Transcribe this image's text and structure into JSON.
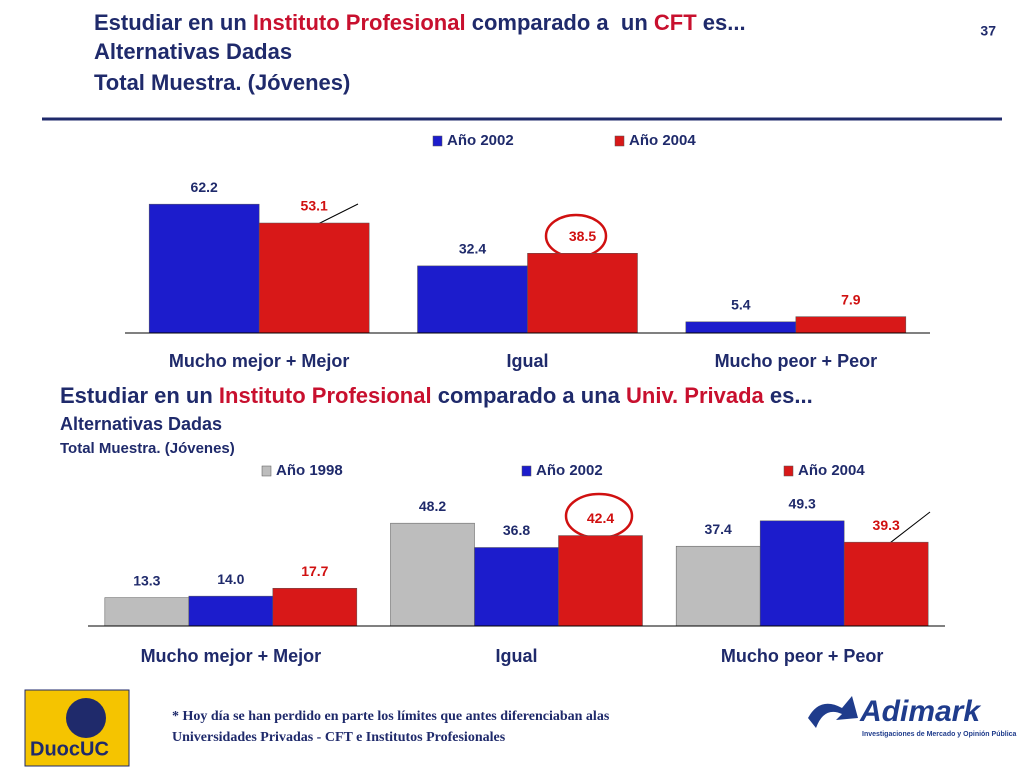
{
  "page_number": "37",
  "footnote": [
    "* Hoy día se han perdido en parte los límites que antes diferenciaban alas",
    "Universidades Privadas - CFT e Institutos Profesionales"
  ],
  "logos": [
    "DuocUC",
    "Adimark",
    "Investigaciones de Mercado y Opinión Pública"
  ],
  "chart_data": [
    {
      "type": "bar",
      "title": [
        "Estudiar en un ",
        "Instituto Profesional",
        " comparado a  un ",
        "CFT",
        " es..."
      ],
      "subtitle": [
        "Alternativas Dadas",
        "Total Muestra. (Jóvenes)"
      ],
      "categories": [
        "Mucho mejor + Mejor",
        "Igual",
        "Mucho peor + Peor"
      ],
      "series": [
        {
          "name": "Año 2002",
          "color": "#1c1ccc",
          "label_color": "#1f2a6b",
          "values": [
            62.2,
            32.4,
            5.4
          ]
        },
        {
          "name": "Año 2004",
          "color": "#d81818",
          "label_color": "#d01010",
          "values": [
            53.1,
            38.5,
            7.9
          ]
        }
      ],
      "ylim": [
        0,
        70
      ]
    },
    {
      "type": "bar",
      "title": [
        "Estudiar en un ",
        "Instituto Profesional",
        " comparado a una ",
        "Univ. Privada",
        " es..."
      ],
      "subtitle": [
        "Alternativas Dadas",
        "Total Muestra. (Jóvenes)"
      ],
      "categories": [
        "Mucho mejor + Mejor",
        "Igual",
        "Mucho peor + Peor"
      ],
      "series": [
        {
          "name": "Año 1998",
          "color": "#bdbdbd",
          "label_color": "#1f2a6b",
          "values": [
            13.3,
            48.2,
            37.4
          ]
        },
        {
          "name": "Año 2002",
          "color": "#1c1ccc",
          "label_color": "#1f2a6b",
          "values": [
            14,
            36.8,
            49.3
          ],
          "value_labels": [
            "14.0",
            "36.8",
            "49.3"
          ]
        },
        {
          "name": "Año 2004",
          "color": "#d81818",
          "label_color": "#d01010",
          "values": [
            17.7,
            42.4,
            39.3
          ]
        }
      ],
      "ylim": [
        0,
        60
      ]
    }
  ]
}
